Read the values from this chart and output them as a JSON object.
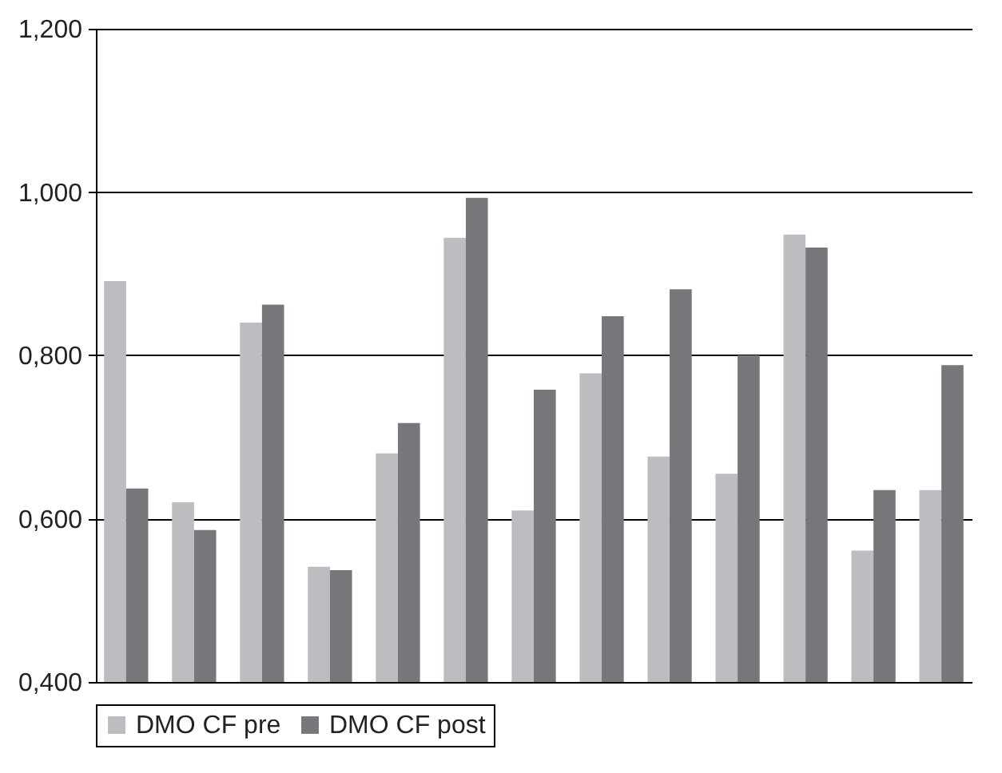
{
  "chart_data": {
    "type": "bar",
    "categories": [
      null,
      null,
      null,
      null,
      null,
      null,
      null,
      null,
      null,
      null,
      null,
      null,
      null
    ],
    "series": [
      {
        "name": "DMO CF pre",
        "color": "#bcbdc1",
        "values": [
          0.891,
          0.62,
          0.84,
          0.541,
          0.68,
          0.944,
          0.61,
          0.778,
          0.676,
          0.655,
          0.948,
          0.561,
          0.635
        ]
      },
      {
        "name": "DMO CF post",
        "color": "#76777b",
        "values": [
          0.637,
          0.586,
          0.862,
          0.537,
          0.717,
          0.993,
          0.758,
          0.848,
          0.881,
          0.8,
          0.932,
          0.635,
          0.788
        ]
      }
    ],
    "ylim": [
      0.4,
      1.2
    ],
    "yticks": [
      {
        "value": 0.4,
        "label": "0,400"
      },
      {
        "value": 0.6,
        "label": "0,600"
      },
      {
        "value": 0.8,
        "label": "0,800"
      },
      {
        "value": 1.0,
        "label": "1,000"
      },
      {
        "value": 1.2,
        "label": "1,200"
      }
    ],
    "grid": "y",
    "legend": "bottom"
  }
}
